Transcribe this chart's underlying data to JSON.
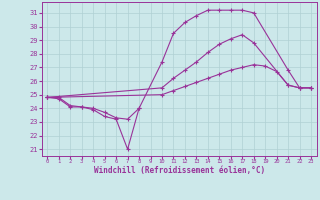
{
  "xlabel": "Windchill (Refroidissement éolien,°C)",
  "xlim": [
    -0.5,
    23.5
  ],
  "ylim": [
    20.5,
    31.8
  ],
  "yticks": [
    21,
    22,
    23,
    24,
    25,
    26,
    27,
    28,
    29,
    30,
    31
  ],
  "xticks": [
    0,
    1,
    2,
    3,
    4,
    5,
    6,
    7,
    8,
    9,
    10,
    11,
    12,
    13,
    14,
    15,
    16,
    17,
    18,
    19,
    20,
    21,
    22,
    23
  ],
  "bg_color": "#cce8ea",
  "line_color": "#993399",
  "grid_color": "#b0d0d4",
  "curve1_x": [
    0,
    1,
    2,
    3,
    4,
    5,
    6,
    7,
    8,
    10,
    11,
    12,
    13,
    14,
    15,
    16,
    17,
    18,
    21,
    22,
    23
  ],
  "curve1_y": [
    24.8,
    24.8,
    24.2,
    24.1,
    24.0,
    23.7,
    23.3,
    23.2,
    24.0,
    27.4,
    29.5,
    30.3,
    30.8,
    31.2,
    31.2,
    31.2,
    31.2,
    31.0,
    26.8,
    25.5,
    25.5
  ],
  "curve2_x": [
    0,
    10,
    11,
    12,
    13,
    14,
    15,
    16,
    17,
    18,
    21,
    22,
    23
  ],
  "curve2_y": [
    24.8,
    25.5,
    26.2,
    26.8,
    27.4,
    28.1,
    28.7,
    29.1,
    29.4,
    28.8,
    25.7,
    25.5,
    25.5
  ],
  "curve3_x": [
    0,
    10,
    11,
    12,
    13,
    14,
    15,
    16,
    17,
    18,
    19,
    20,
    21,
    22,
    23
  ],
  "curve3_y": [
    24.8,
    25.0,
    25.3,
    25.6,
    25.9,
    26.2,
    26.5,
    26.8,
    27.0,
    27.2,
    27.1,
    26.7,
    25.7,
    25.5,
    25.5
  ],
  "curve4_x": [
    0,
    1,
    2,
    3,
    4,
    5,
    6,
    7,
    8
  ],
  "curve4_y": [
    24.8,
    24.7,
    24.1,
    24.1,
    23.9,
    23.4,
    23.2,
    21.0,
    24.0
  ]
}
